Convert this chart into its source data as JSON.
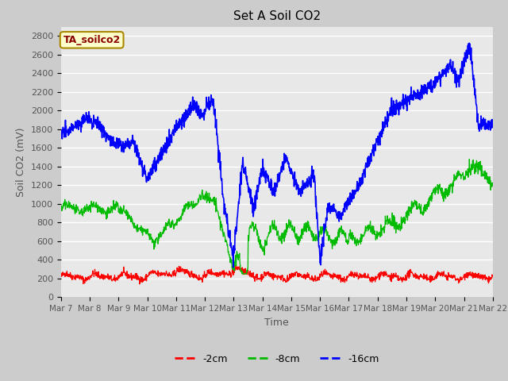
{
  "title": "Set A Soil CO2",
  "xlabel": "Time",
  "ylabel": "Soil CO2 (mV)",
  "ylim": [
    0,
    2900
  ],
  "yticks": [
    0,
    200,
    400,
    600,
    800,
    1000,
    1200,
    1400,
    1600,
    1800,
    2000,
    2200,
    2400,
    2600,
    2800
  ],
  "xtick_labels": [
    "Mar 7",
    "Mar 8",
    "Mar 9",
    "Mar 10",
    "Mar 11",
    "Mar 12",
    "Mar 13",
    "Mar 14",
    "Mar 15",
    "Mar 16",
    "Mar 17",
    "Mar 18",
    "Mar 19",
    "Mar 20",
    "Mar 21",
    "Mar 22"
  ],
  "annotation": "TA_soilco2",
  "annotation_color": "#8B0000",
  "annotation_bg": "#FFFFCC",
  "legend_labels": [
    "-2cm",
    "-8cm",
    "-16cm"
  ],
  "line_colors": [
    "#FF0000",
    "#00BB00",
    "#0000FF"
  ],
  "fig_bg": "#CCCCCC",
  "plot_bg": "#E8E8E8",
  "n_points": 1440,
  "days": 15
}
